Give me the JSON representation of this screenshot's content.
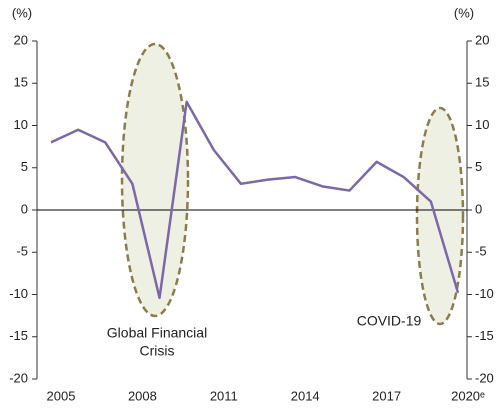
{
  "chart_data": {
    "type": "line",
    "y_unit": "(%)",
    "y2_unit": "(%)",
    "categories": [
      "2005",
      null,
      null,
      "2008",
      null,
      null,
      "2011",
      null,
      null,
      "2014",
      null,
      null,
      "2017",
      null,
      null,
      "2020ᵉ"
    ],
    "series": [
      {
        "color": "#7b68a8",
        "values": [
          8.0,
          9.5,
          8.0,
          3.1,
          -10.4,
          12.8,
          7.1,
          3.1,
          3.6,
          3.9,
          2.8,
          2.3,
          5.7,
          3.9,
          1.0,
          -9.8
        ]
      }
    ],
    "ylim": [
      -20,
      20
    ],
    "yticks": [
      -20,
      -15,
      -10,
      -5,
      0,
      5,
      10,
      15,
      20
    ],
    "y2lim": [
      -20,
      20
    ],
    "y2ticks": [
      -20,
      -15,
      -10,
      -5,
      0,
      5,
      10,
      15,
      20
    ],
    "annotations": [
      {
        "lines": [
          "Global Financial",
          "Crisis"
        ]
      },
      {
        "lines": [
          "COVID-19"
        ]
      }
    ]
  }
}
